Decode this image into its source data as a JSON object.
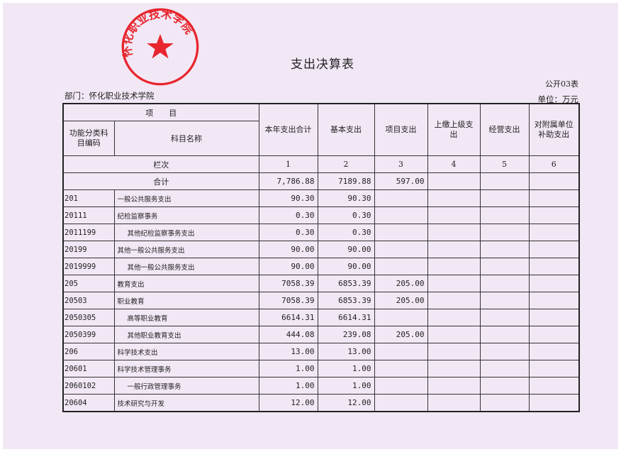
{
  "title": "支出决算表",
  "table_code": "公开03表",
  "department": "部门：怀化职业技术学院",
  "unit": "单位：万元",
  "stamp_text": "怀化职业技术学院",
  "colors": {
    "stamp": "#e8262e",
    "paper": "#f2e8f5"
  },
  "headers": {
    "item": "项　　目",
    "code": "功能分类科目编码",
    "name": "科目名称",
    "cols": [
      "本年支出合计",
      "基本支出",
      "项目支出",
      "上缴上级支出",
      "经营支出",
      "对附属单位补助支出"
    ],
    "row_label": "栏次",
    "col_numbers": [
      "1",
      "2",
      "3",
      "4",
      "5",
      "6"
    ]
  },
  "total": {
    "label": "合计",
    "values": [
      "7,786.88",
      "7189.88",
      "597.00",
      "",
      "",
      ""
    ]
  },
  "rows": [
    {
      "code": "201",
      "name": "一般公共服务支出",
      "indent": false,
      "values": [
        "90.30",
        "90.30",
        "",
        "",
        "",
        ""
      ]
    },
    {
      "code": "20111",
      "name": "纪检监察事务",
      "indent": false,
      "values": [
        "0.30",
        "0.30",
        "",
        "",
        "",
        ""
      ]
    },
    {
      "code": "2011199",
      "name": "其他纪检监察事务支出",
      "indent": true,
      "values": [
        "0.30",
        "0.30",
        "",
        "",
        "",
        ""
      ]
    },
    {
      "code": "20199",
      "name": "其他一般公共服务支出",
      "indent": false,
      "values": [
        "90.00",
        "90.00",
        "",
        "",
        "",
        ""
      ]
    },
    {
      "code": "2019999",
      "name": "其他一般公共服务支出",
      "indent": true,
      "values": [
        "90.00",
        "90.00",
        "",
        "",
        "",
        ""
      ]
    },
    {
      "code": "205",
      "name": "教育支出",
      "indent": false,
      "values": [
        "7058.39",
        "6853.39",
        "205.00",
        "",
        "",
        ""
      ]
    },
    {
      "code": "20503",
      "name": "职业教育",
      "indent": false,
      "values": [
        "7058.39",
        "6853.39",
        "205.00",
        "",
        "",
        ""
      ]
    },
    {
      "code": "2050305",
      "name": "高等职业教育",
      "indent": true,
      "values": [
        "6614.31",
        "6614.31",
        "",
        "",
        "",
        ""
      ]
    },
    {
      "code": "2050399",
      "name": "其他职业教育支出",
      "indent": true,
      "values": [
        "444.08",
        "239.08",
        "205.00",
        "",
        "",
        ""
      ]
    },
    {
      "code": "206",
      "name": "科学技术支出",
      "indent": false,
      "values": [
        "13.00",
        "13.00",
        "",
        "",
        "",
        ""
      ]
    },
    {
      "code": "20601",
      "name": "科学技术管理事务",
      "indent": false,
      "values": [
        "1.00",
        "1.00",
        "",
        "",
        "",
        ""
      ]
    },
    {
      "code": "2060102",
      "name": "一般行政管理事务",
      "indent": true,
      "values": [
        "1.00",
        "1.00",
        "",
        "",
        "",
        ""
      ]
    },
    {
      "code": "20604",
      "name": "技术研究与开发",
      "indent": false,
      "values": [
        "12.00",
        "12.00",
        "",
        "",
        "",
        ""
      ]
    }
  ]
}
